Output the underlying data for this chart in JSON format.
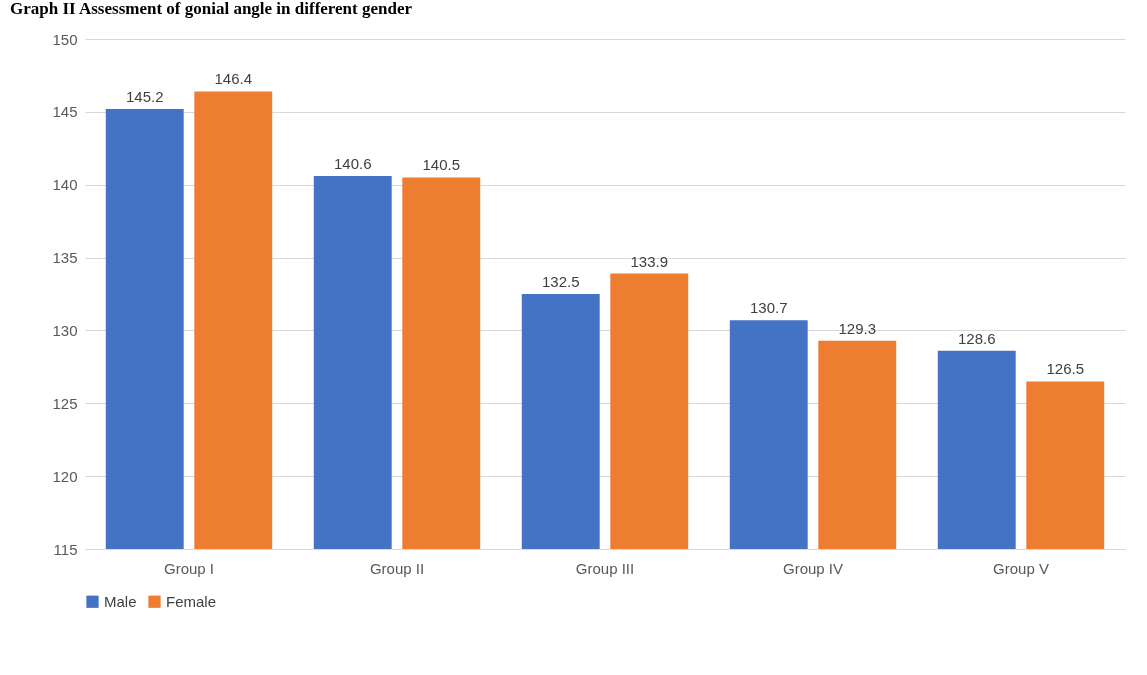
{
  "chart_data": {
    "type": "bar",
    "title": "Graph II Assessment of gonial angle in different gender",
    "categories": [
      "Group I",
      "Group II",
      "Group III",
      "Group IV",
      "Group V"
    ],
    "series": [
      {
        "name": "Male",
        "color": "#4472c4",
        "values": [
          145.2,
          140.6,
          132.5,
          130.7,
          128.6
        ]
      },
      {
        "name": "Female",
        "color": "#ed7d31",
        "values": [
          146.4,
          140.5,
          133.9,
          129.3,
          126.5
        ]
      }
    ],
    "ylim": [
      115,
      150
    ],
    "yticks": [
      115,
      120,
      125,
      130,
      135,
      140,
      145,
      150
    ],
    "grid": "y",
    "legend": "bottom",
    "data_labels": true
  }
}
